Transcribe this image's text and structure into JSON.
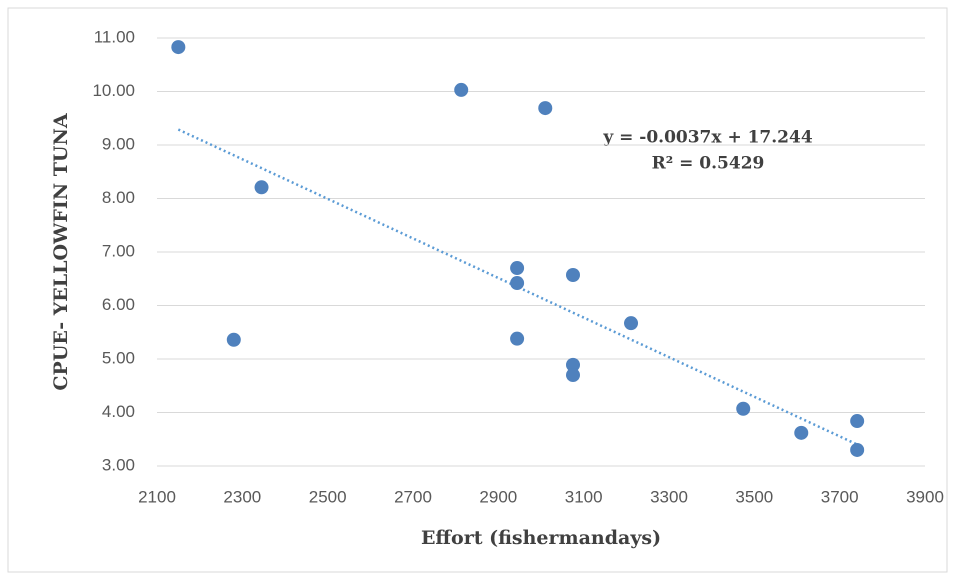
{
  "chart_data": {
    "type": "scatter",
    "x_label": "Effort (fishermandays)",
    "y_label": "CPUE- YELLOWFIN TUNA",
    "x": [
      2150,
      2345,
      2280,
      2813,
      3010,
      2944,
      2944,
      2944,
      3075,
      3211,
      3075,
      3075,
      3474,
      3610,
      3741,
      3741
    ],
    "values": [
      10.83,
      8.21,
      5.36,
      10.03,
      9.69,
      6.7,
      6.42,
      5.38,
      6.57,
      5.67,
      4.89,
      4.7,
      4.07,
      3.62,
      3.84,
      3.3
    ],
    "color": "#4f81bd",
    "xlim": [
      2100,
      3900
    ],
    "xticks": [
      2100,
      2300,
      2500,
      2700,
      2900,
      3100,
      3300,
      3500,
      3700,
      3900
    ],
    "ylim": [
      3,
      11
    ],
    "yticks": [
      {
        "value": 3,
        "label": "3.00"
      },
      {
        "value": 4,
        "label": "4.00"
      },
      {
        "value": 5,
        "label": "5.00"
      },
      {
        "value": 6,
        "label": "6.00"
      },
      {
        "value": 7,
        "label": "7.00"
      },
      {
        "value": 8,
        "label": "8.00"
      },
      {
        "value": 9,
        "label": "9.00"
      },
      {
        "value": 10,
        "label": "10.00"
      },
      {
        "value": 11,
        "label": "11.00"
      }
    ],
    "grid": true,
    "trendline": {
      "equation": "y = -0.0037x + 17.244",
      "r2": "R² = 0.5429",
      "slope": -0.0037,
      "intercept": 17.244,
      "color": "#5b9bd5"
    }
  }
}
